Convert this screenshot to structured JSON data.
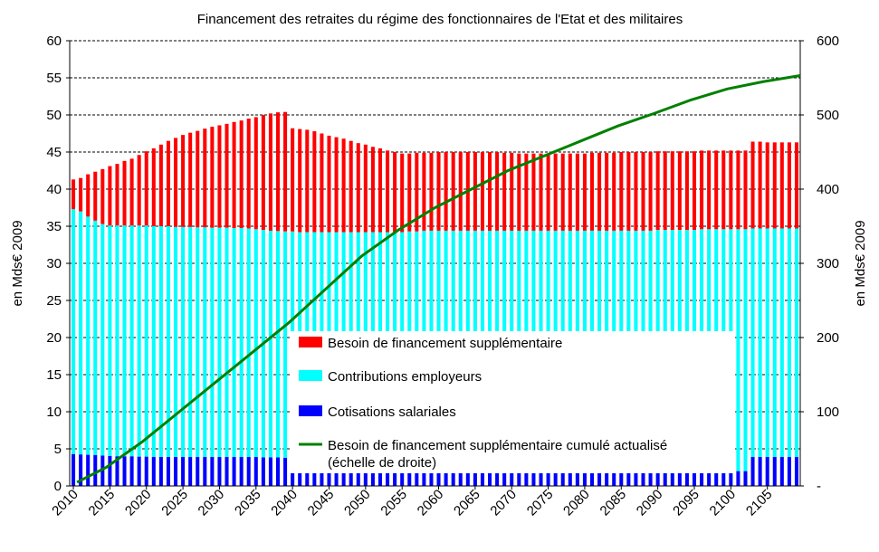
{
  "chart_data": {
    "type": "bar",
    "stacked": true,
    "title": "Financement des retraites du régime des fonctionnaires de l'Etat et des militaires",
    "ylabel_left": "en Mds€ 2009",
    "ylabel_right": "en Mds€ 2009",
    "ylim_left": [
      0,
      60
    ],
    "ylim_right": [
      0,
      600
    ],
    "yticks_left": [
      "0",
      "5",
      "10",
      "15",
      "20",
      "25",
      "30",
      "35",
      "40",
      "45",
      "50",
      "55",
      "60"
    ],
    "yticks_right": [
      "-",
      "100",
      "200",
      "300",
      "400",
      "500",
      "600"
    ],
    "xticks": [
      "2010",
      "2015",
      "2020",
      "2025",
      "2030",
      "2035",
      "2040",
      "2045",
      "2050",
      "2055",
      "2060",
      "2065",
      "2070",
      "2075",
      "2080",
      "2085",
      "2090",
      "2095",
      "2100",
      "2105"
    ],
    "grid": true,
    "legend_position": "bottom-center",
    "years": [
      2010,
      2011,
      2012,
      2013,
      2014,
      2015,
      2016,
      2017,
      2018,
      2019,
      2020,
      2021,
      2022,
      2023,
      2024,
      2025,
      2026,
      2027,
      2028,
      2029,
      2030,
      2031,
      2032,
      2033,
      2034,
      2035,
      2036,
      2037,
      2038,
      2039,
      2040,
      2041,
      2042,
      2043,
      2044,
      2045,
      2046,
      2047,
      2048,
      2049,
      2050,
      2051,
      2052,
      2053,
      2054,
      2055,
      2056,
      2057,
      2058,
      2059,
      2060,
      2061,
      2062,
      2063,
      2064,
      2065,
      2066,
      2067,
      2068,
      2069,
      2070,
      2071,
      2072,
      2073,
      2074,
      2075,
      2076,
      2077,
      2078,
      2079,
      2080,
      2081,
      2082,
      2083,
      2084,
      2085,
      2086,
      2087,
      2088,
      2089,
      2090,
      2091,
      2092,
      2093,
      2094,
      2095,
      2096,
      2097,
      2098,
      2099,
      2100,
      2101,
      2102,
      2103,
      2104,
      2105,
      2106,
      2107,
      2108,
      2109
    ],
    "series": [
      {
        "name": "Cotisations salariales",
        "color": "#0000ff",
        "values": [
          4.3,
          4.25,
          4.2,
          4.15,
          4.1,
          4.05,
          4.0,
          4.0,
          4.0,
          3.95,
          3.95,
          3.9,
          3.9,
          3.9,
          3.9,
          3.9,
          3.9,
          3.9,
          3.9,
          3.9,
          3.9,
          3.9,
          3.9,
          3.9,
          3.9,
          3.9,
          3.85,
          3.85,
          3.85,
          3.8,
          2.0,
          2.0,
          2.0,
          2.0,
          2.0,
          2.0,
          2.0,
          2.0,
          2.0,
          2.0,
          2.0,
          2.0,
          2.0,
          2.0,
          2.0,
          2.0,
          2.0,
          2.0,
          2.0,
          2.0,
          2.0,
          2.0,
          2.0,
          2.0,
          2.0,
          2.0,
          2.0,
          2.0,
          2.0,
          2.0,
          2.0,
          2.0,
          2.0,
          2.0,
          2.0,
          2.0,
          2.0,
          2.0,
          2.0,
          2.0,
          2.0,
          2.0,
          2.0,
          2.0,
          2.0,
          2.0,
          2.0,
          2.0,
          2.0,
          2.0,
          2.0,
          2.0,
          2.0,
          2.0,
          2.0,
          2.0,
          2.0,
          2.0,
          2.0,
          2.0,
          2.0,
          2.0,
          2.0,
          3.9,
          3.9,
          3.9,
          3.9,
          3.9,
          3.9,
          3.9
        ]
      },
      {
        "name": "Contributions employeurs",
        "color": "#00ffff",
        "values": [
          33.0,
          32.75,
          32.1,
          31.6,
          31.2,
          31.05,
          31.1,
          31.1,
          31.1,
          31.15,
          31.15,
          31.1,
          31.1,
          31.1,
          31.0,
          31.0,
          31.0,
          30.95,
          30.95,
          30.9,
          30.9,
          30.9,
          30.85,
          30.85,
          30.8,
          30.7,
          30.65,
          30.55,
          30.5,
          30.5,
          32.3,
          32.2,
          32.2,
          32.2,
          32.2,
          32.2,
          32.2,
          32.2,
          32.2,
          32.2,
          32.2,
          32.2,
          32.2,
          32.2,
          32.2,
          32.2,
          32.3,
          32.3,
          32.4,
          32.4,
          32.4,
          32.4,
          32.4,
          32.4,
          32.4,
          32.4,
          32.4,
          32.4,
          32.4,
          32.4,
          32.4,
          32.4,
          32.4,
          32.4,
          32.4,
          32.4,
          32.4,
          32.4,
          32.4,
          32.4,
          32.4,
          32.4,
          32.4,
          32.4,
          32.4,
          32.4,
          32.4,
          32.4,
          32.4,
          32.4,
          32.5,
          32.5,
          32.5,
          32.5,
          32.5,
          32.5,
          32.6,
          32.6,
          32.6,
          32.6,
          32.6,
          32.6,
          32.6,
          30.8,
          30.8,
          30.8,
          30.8,
          30.8,
          30.8,
          30.8
        ]
      },
      {
        "name": "Besoin de financement supplémentaire",
        "color": "#ff0000",
        "values": [
          4.0,
          4.5,
          5.7,
          6.6,
          7.4,
          8.0,
          8.3,
          8.7,
          9.0,
          9.5,
          10.0,
          10.5,
          11.0,
          11.5,
          12.0,
          12.4,
          12.7,
          13.0,
          13.3,
          13.6,
          13.8,
          14.0,
          14.3,
          14.5,
          14.8,
          15.1,
          15.5,
          15.8,
          16.0,
          16.1,
          13.9,
          13.9,
          13.8,
          13.6,
          13.3,
          13.0,
          12.8,
          12.6,
          12.3,
          12.0,
          11.8,
          11.5,
          11.3,
          11.0,
          10.8,
          10.6,
          10.5,
          10.6,
          10.5,
          10.5,
          10.6,
          10.6,
          10.6,
          10.6,
          10.6,
          10.6,
          10.6,
          10.6,
          10.6,
          10.5,
          10.5,
          10.4,
          10.4,
          10.4,
          10.4,
          10.4,
          10.4,
          10.4,
          10.4,
          10.4,
          10.4,
          10.5,
          10.5,
          10.5,
          10.5,
          10.6,
          10.6,
          10.6,
          10.6,
          10.6,
          10.6,
          10.6,
          10.6,
          10.6,
          10.6,
          10.6,
          10.6,
          10.6,
          10.6,
          10.6,
          10.6,
          10.6,
          10.6,
          11.7,
          11.7,
          11.6,
          11.6,
          11.6,
          11.6,
          11.6
        ]
      }
    ],
    "line_series": {
      "name": "Besoin de financement supplémentaire cumulé actualisé (échelle de droite)",
      "legend_line1": "Besoin de financement supplémentaire cumulé actualisé",
      "legend_line2": "(échelle de droite)",
      "color": "#008000",
      "axis": "right",
      "x": [
        2011,
        2015,
        2020,
        2025,
        2030,
        2035,
        2040,
        2045,
        2050,
        2055,
        2060,
        2065,
        2070,
        2075,
        2080,
        2085,
        2090,
        2095,
        2100,
        2105,
        2110
      ],
      "values": [
        5,
        25,
        60,
        100,
        140,
        180,
        220,
        265,
        310,
        345,
        375,
        400,
        425,
        445,
        465,
        485,
        502,
        520,
        535,
        545,
        553
      ]
    },
    "colors": {
      "background": "#ffffff",
      "grid": "#000000",
      "legend_box": "#ffffff"
    }
  }
}
